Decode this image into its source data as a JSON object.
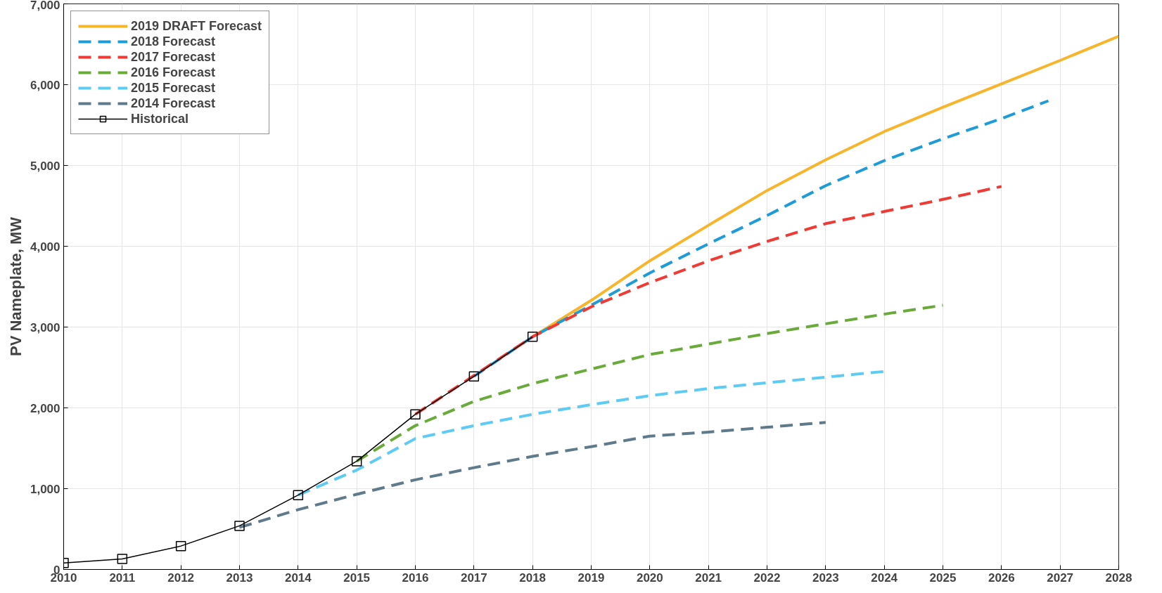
{
  "chart_data": {
    "type": "line",
    "ylabel": "PV Nameplate, MW",
    "xlim": [
      2010,
      2028
    ],
    "ylim": [
      0,
      7000
    ],
    "xticks": [
      2010,
      2011,
      2012,
      2013,
      2014,
      2015,
      2016,
      2017,
      2018,
      2019,
      2020,
      2021,
      2022,
      2023,
      2024,
      2025,
      2026,
      2027,
      2028
    ],
    "yticks": [
      0,
      {
        "value": 1000,
        "label": "1,000"
      },
      {
        "value": 2000,
        "label": "2,000"
      },
      {
        "value": 3000,
        "label": "3,000"
      },
      {
        "value": 4000,
        "label": "4,000"
      },
      {
        "value": 5000,
        "label": "5,000"
      },
      {
        "value": 6000,
        "label": "6,000"
      },
      {
        "value": 7000,
        "label": "7,000"
      }
    ],
    "grid": true,
    "legend": "top left",
    "series": [
      {
        "name": "2019 DRAFT Forecast",
        "color": "#f7b52c",
        "line_style": "solid",
        "marker": "none",
        "x": [
          2018,
          2019,
          2020,
          2021,
          2022,
          2023,
          2024,
          2025,
          2026,
          2027,
          2028
        ],
        "values": [
          2880,
          3330,
          3820,
          4260,
          4690,
          5070,
          5420,
          5720,
          6010,
          6300,
          6600
        ]
      },
      {
        "name": "2018 Forecast",
        "color": "#1f9bd7",
        "line_style": "dashed",
        "marker": "none",
        "x": [
          2017,
          2018,
          2019,
          2020,
          2021,
          2022,
          2023,
          2024,
          2025,
          2026,
          2026.8
        ],
        "values": [
          2390,
          2880,
          3270,
          3670,
          4030,
          4380,
          4750,
          5060,
          5330,
          5580,
          5800
        ]
      },
      {
        "name": "2017 Forecast",
        "color": "#ee3b36",
        "line_style": "dashed",
        "marker": "none",
        "x": [
          2016,
          2017,
          2018,
          2019,
          2020,
          2021,
          2022,
          2023,
          2024,
          2025,
          2026
        ],
        "values": [
          1920,
          2400,
          2880,
          3250,
          3550,
          3820,
          4060,
          4280,
          4430,
          4580,
          4740
        ]
      },
      {
        "name": "2016 Forecast",
        "color": "#6aaa3a",
        "line_style": "dashed",
        "marker": "none",
        "x": [
          2015,
          2016,
          2017,
          2018,
          2019,
          2020,
          2021,
          2022,
          2023,
          2024,
          2025
        ],
        "values": [
          1340,
          1780,
          2080,
          2300,
          2480,
          2660,
          2790,
          2920,
          3040,
          3160,
          3270
        ]
      },
      {
        "name": "2015 Forecast",
        "color": "#5ecbf5",
        "line_style": "dashed",
        "marker": "none",
        "x": [
          2014,
          2015,
          2016,
          2017,
          2018,
          2019,
          2020,
          2021,
          2022,
          2023,
          2024
        ],
        "values": [
          920,
          1230,
          1620,
          1780,
          1920,
          2040,
          2150,
          2240,
          2310,
          2380,
          2450
        ]
      },
      {
        "name": "2014 Forecast",
        "color": "#5f7a8a",
        "line_style": "dashed",
        "marker": "none",
        "x": [
          2013,
          2014,
          2015,
          2016,
          2017,
          2018,
          2019,
          2020,
          2021,
          2022,
          2023
        ],
        "values": [
          520,
          740,
          930,
          1110,
          1260,
          1400,
          1520,
          1650,
          1700,
          1760,
          1820
        ]
      },
      {
        "name": "Historical",
        "color": "#000000",
        "line_style": "solid",
        "marker": "square",
        "x": [
          2010,
          2011,
          2012,
          2013,
          2014,
          2015,
          2016,
          2017,
          2018
        ],
        "values": [
          80,
          130,
          290,
          540,
          920,
          1340,
          1920,
          2390,
          2880
        ]
      }
    ]
  }
}
